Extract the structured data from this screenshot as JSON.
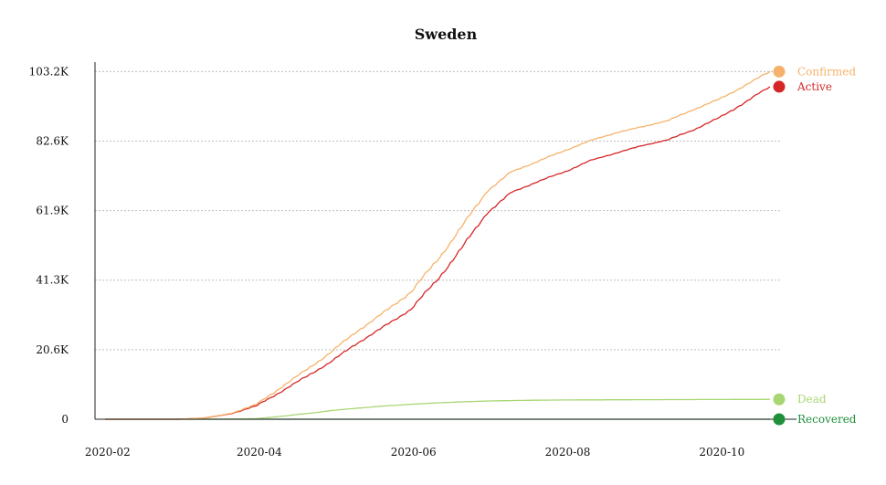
{
  "chart_data": {
    "type": "line",
    "title": "Sweden",
    "xlabel": "",
    "ylabel": "",
    "x_start": "2020-01-27",
    "x_end": "2020-10-24",
    "xlim": [
      "2020-01-27",
      "2020-10-24"
    ],
    "ylim": [
      0,
      106000
    ],
    "x_ticks": [
      {
        "date": "2020-02-01",
        "label": "2020-02"
      },
      {
        "date": "2020-04-01",
        "label": "2020-04"
      },
      {
        "date": "2020-06-01",
        "label": "2020-06"
      },
      {
        "date": "2020-08-01",
        "label": "2020-08"
      },
      {
        "date": "2020-10-01",
        "label": "2020-10"
      }
    ],
    "y_ticks": [
      {
        "value": 0,
        "label": "0"
      },
      {
        "value": 20640,
        "label": "20.6K"
      },
      {
        "value": 41280,
        "label": "41.3K"
      },
      {
        "value": 61920,
        "label": "61.9K"
      },
      {
        "value": 82560,
        "label": "82.6K"
      },
      {
        "value": 103200,
        "label": "103.2K"
      }
    ],
    "grid": true,
    "legend_placement": "right",
    "series": [
      {
        "name": "Confirmed",
        "color": "#f6b26b",
        "points": [
          [
            "2020-01-31",
            1
          ],
          [
            "2020-02-29",
            10
          ],
          [
            "2020-03-10",
            350
          ],
          [
            "2020-03-20",
            1600
          ],
          [
            "2020-03-31",
            4400
          ],
          [
            "2020-04-10",
            9700
          ],
          [
            "2020-04-20",
            14800
          ],
          [
            "2020-04-30",
            20300
          ],
          [
            "2020-05-10",
            26300
          ],
          [
            "2020-05-20",
            31500
          ],
          [
            "2020-05-31",
            37800
          ],
          [
            "2020-06-10",
            46800
          ],
          [
            "2020-06-20",
            57000
          ],
          [
            "2020-06-30",
            67700
          ],
          [
            "2020-07-10",
            73500
          ],
          [
            "2020-07-20",
            76500
          ],
          [
            "2020-07-31",
            79800
          ],
          [
            "2020-08-10",
            82700
          ],
          [
            "2020-08-20",
            85000
          ],
          [
            "2020-08-31",
            86900
          ],
          [
            "2020-09-10",
            88700
          ],
          [
            "2020-09-20",
            92000
          ],
          [
            "2020-09-30",
            95000
          ],
          [
            "2020-10-10",
            99000
          ],
          [
            "2020-10-20",
            103200
          ]
        ]
      },
      {
        "name": "Active",
        "color": "#d62728",
        "points": [
          [
            "2020-01-31",
            1
          ],
          [
            "2020-02-29",
            10
          ],
          [
            "2020-03-10",
            340
          ],
          [
            "2020-03-20",
            1500
          ],
          [
            "2020-03-31",
            4000
          ],
          [
            "2020-04-10",
            8400
          ],
          [
            "2020-04-20",
            12800
          ],
          [
            "2020-04-30",
            17400
          ],
          [
            "2020-05-10",
            22700
          ],
          [
            "2020-05-20",
            27300
          ],
          [
            "2020-05-31",
            32700
          ],
          [
            "2020-06-10",
            41000
          ],
          [
            "2020-06-20",
            50700
          ],
          [
            "2020-06-30",
            61200
          ],
          [
            "2020-07-10",
            67400
          ],
          [
            "2020-07-20",
            70500
          ],
          [
            "2020-07-31",
            73500
          ],
          [
            "2020-08-10",
            76800
          ],
          [
            "2020-08-20",
            79000
          ],
          [
            "2020-08-31",
            81300
          ],
          [
            "2020-09-10",
            83000
          ],
          [
            "2020-09-20",
            86000
          ],
          [
            "2020-09-30",
            89500
          ],
          [
            "2020-10-10",
            94000
          ],
          [
            "2020-10-20",
            98700
          ]
        ]
      },
      {
        "name": "Dead",
        "color": "#a8d672",
        "points": [
          [
            "2020-01-31",
            0
          ],
          [
            "2020-03-15",
            10
          ],
          [
            "2020-03-31",
            180
          ],
          [
            "2020-04-10",
            900
          ],
          [
            "2020-04-20",
            1700
          ],
          [
            "2020-04-30",
            2600
          ],
          [
            "2020-05-10",
            3300
          ],
          [
            "2020-05-20",
            3900
          ],
          [
            "2020-05-31",
            4450
          ],
          [
            "2020-06-10",
            4850
          ],
          [
            "2020-06-20",
            5150
          ],
          [
            "2020-06-30",
            5400
          ],
          [
            "2020-07-10",
            5550
          ],
          [
            "2020-07-20",
            5650
          ],
          [
            "2020-07-31",
            5720
          ],
          [
            "2020-08-31",
            5800
          ],
          [
            "2020-09-30",
            5860
          ],
          [
            "2020-10-20",
            5900
          ]
        ]
      },
      {
        "name": "Recovered",
        "color": "#1f8f3a",
        "points": [
          [
            "2020-01-31",
            0
          ],
          [
            "2020-10-20",
            0
          ]
        ]
      }
    ]
  }
}
